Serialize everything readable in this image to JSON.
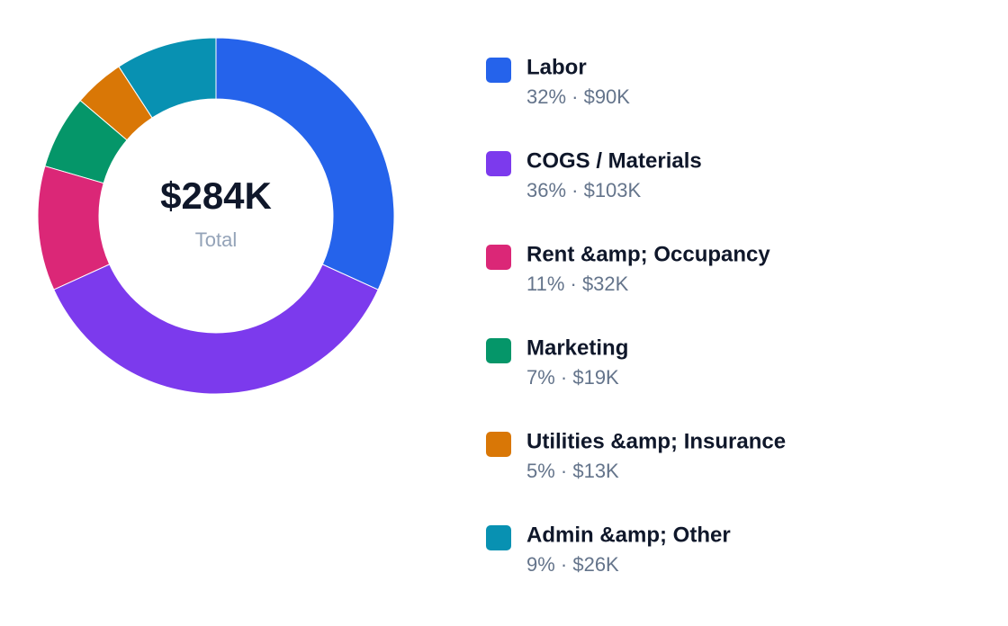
{
  "chart_data": {
    "type": "donut",
    "center_label": "$284K",
    "center_sublabel": "Total",
    "categories": [
      "Labor",
      "COGS / Materials",
      "Rent &amp; Occupancy",
      "Marketing",
      "Utilities &amp; Insurance",
      "Admin &amp; Other"
    ],
    "values": [
      90000,
      103000,
      32000,
      19000,
      13000,
      26000
    ],
    "value_labels": [
      "32% · $90K",
      "36% · $103K",
      "11% · $32K",
      "7% · $19K",
      "5% · $13K",
      "9% · $26K"
    ],
    "colors": [
      "#2563eb",
      "#7c3aed",
      "#db2777",
      "#059669",
      "#d97706",
      "#0891b2"
    ]
  }
}
